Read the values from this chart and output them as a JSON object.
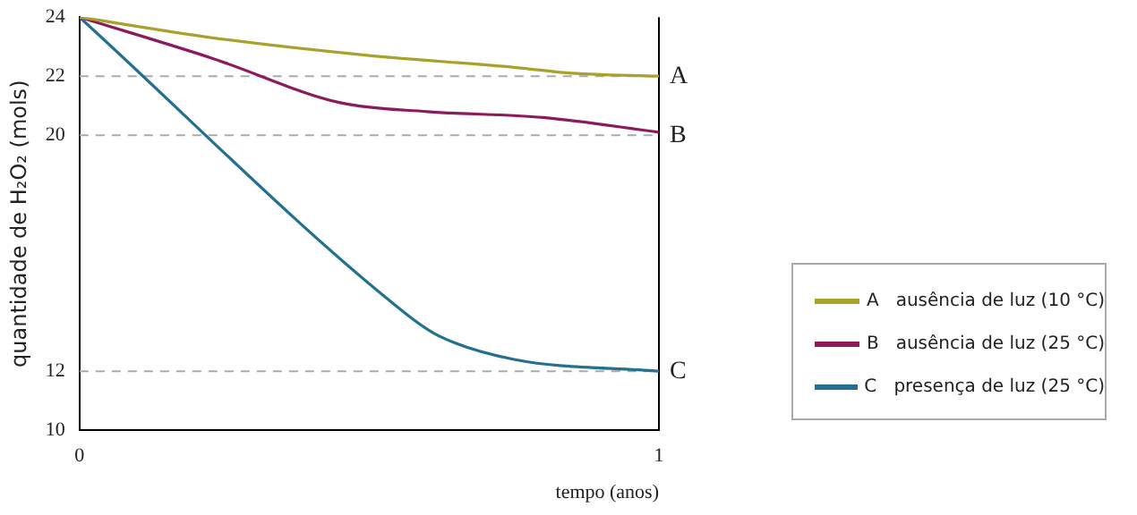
{
  "chart_data": {
    "type": "line",
    "xlabel": "tempo (anos)",
    "ylabel": "quantidade de H₂O₂ (mols)",
    "xlim": [
      0,
      1
    ],
    "xticks": [
      0,
      1
    ],
    "ylim": [
      10,
      24
    ],
    "yticks": [
      10,
      12,
      20,
      22,
      24
    ],
    "grid": false,
    "legend": "right",
    "marker": "none",
    "line_style": "solid",
    "series": [
      {
        "name": "A   ausência de luz (10 °C)",
        "color": "#a9a22a",
        "x": [
          0,
          0.23,
          0.5,
          0.75,
          0.85,
          1
        ],
        "values": [
          24,
          23.3,
          22.7,
          22.3,
          22.1,
          22
        ]
      },
      {
        "name": "B   ausência de luz (25 °C)",
        "color": "#8c1a5c",
        "x": [
          0,
          0.23,
          0.45,
          0.6,
          0.8,
          1
        ],
        "values": [
          24,
          22.6,
          21.1,
          20.8,
          20.6,
          20.1
        ]
      },
      {
        "name": "C   presença de luz (25 °C)",
        "color": "#23708f",
        "x": [
          0,
          0.56,
          0.62,
          0.75,
          1
        ],
        "values": [
          24,
          14,
          13.2,
          12.4,
          12
        ]
      }
    ],
    "ref_lines": [
      {
        "axis": "y",
        "value": 22,
        "label": "A",
        "color": "#aaaaaa",
        "line_style": "dashed"
      },
      {
        "axis": "y",
        "value": 20,
        "label": "B",
        "color": "#aaaaaa",
        "line_style": "dashed"
      },
      {
        "axis": "y",
        "value": 12,
        "label": "C",
        "color": "#aaaaaa",
        "line_style": "dashed"
      },
      {
        "axis": "x",
        "value": 1,
        "color": "#000000",
        "line_style": "solid"
      }
    ]
  }
}
